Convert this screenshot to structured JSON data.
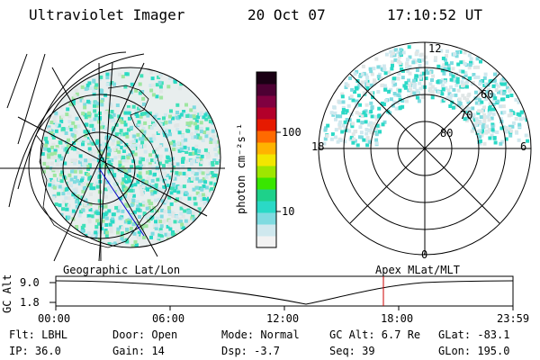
{
  "header": {
    "instrument": "Ultraviolet Imager",
    "date": "20 Oct 07",
    "time": "17:10:52 UT"
  },
  "colorbar": {
    "unit_label": "photon cm⁻²s⁻¹",
    "ticks": [
      {
        "label": "100",
        "value": 100
      },
      {
        "label": "10",
        "value": 10
      }
    ],
    "colors": [
      "#f2f2f2",
      "#cfe8ee",
      "#7fdbe0",
      "#2ad9c6",
      "#1ed18a",
      "#39e600",
      "#9ee600",
      "#f2e600",
      "#ffb300",
      "#ff6a00",
      "#e61a00",
      "#b3002a",
      "#800040",
      "#4d0033",
      "#1a0014"
    ]
  },
  "polar_plot": {
    "mlt_labels": {
      "top": "12",
      "left": "18",
      "right": "6",
      "bottom": "0"
    },
    "lat_labels": [
      "60",
      "70",
      "80"
    ]
  },
  "timeline": {
    "left_label": "Geographic Lat/Lon",
    "right_label": "Apex MLat/MLT",
    "axis_title": "GC Alt",
    "y_ticks": [
      "9.0",
      "1.8"
    ],
    "x_ticks": [
      "00:00",
      "06:00",
      "12:00",
      "18:00",
      "23:59"
    ],
    "current_time_marker_color": "#cc0000"
  },
  "status": {
    "row1": [
      {
        "label": "Flt: LBHL"
      },
      {
        "label": "Door: Open"
      },
      {
        "label": "Mode: Normal"
      },
      {
        "label": "GC Alt: 6.7 Re"
      },
      {
        "label": "GLat: -83.1"
      }
    ],
    "row2": [
      {
        "label": "IP: 36.0"
      },
      {
        "label": "Gain: 14"
      },
      {
        "label": "Dsp:   -3.7"
      },
      {
        "label": "Seq: 39"
      },
      {
        "label": "GLon: 195.0"
      }
    ]
  }
}
